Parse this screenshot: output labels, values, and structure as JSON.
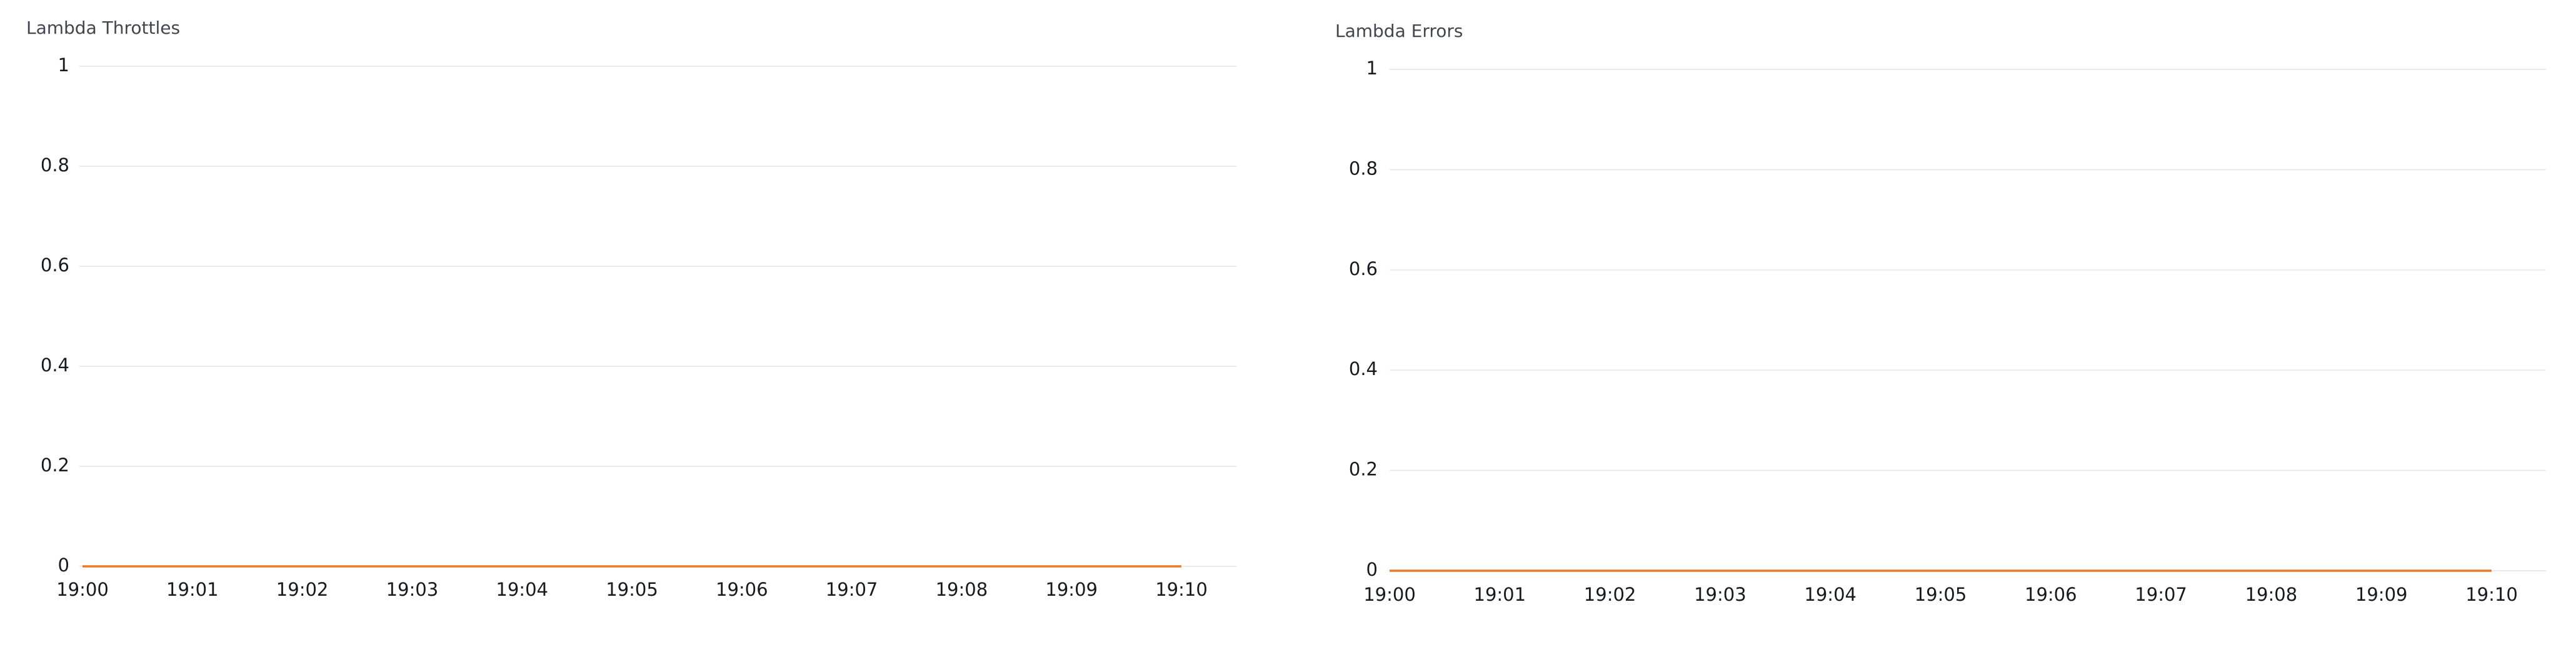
{
  "chart_data": [
    {
      "type": "line",
      "title": "Lambda Throttles",
      "categories": [
        "19:00",
        "19:01",
        "19:02",
        "19:03",
        "19:04",
        "19:05",
        "19:06",
        "19:07",
        "19:08",
        "19:09",
        "19:10"
      ],
      "values": [
        0,
        0,
        0,
        0,
        0,
        0,
        0,
        0,
        0,
        0,
        0
      ],
      "color": "#ec7a25",
      "ylim": [
        0,
        1
      ],
      "yticks": [
        0,
        0.2,
        0.4,
        0.6,
        0.8,
        1
      ],
      "grid": true
    },
    {
      "type": "line",
      "title": "Lambda Errors",
      "categories": [
        "19:00",
        "19:01",
        "19:02",
        "19:03",
        "19:04",
        "19:05",
        "19:06",
        "19:07",
        "19:08",
        "19:09",
        "19:10"
      ],
      "values": [
        0,
        0,
        0,
        0,
        0,
        0,
        0,
        0,
        0,
        0,
        0
      ],
      "color": "#ec7a25",
      "ylim": [
        0,
        1
      ],
      "yticks": [
        0,
        0.2,
        0.4,
        0.6,
        0.8,
        1
      ],
      "grid": true
    }
  ]
}
